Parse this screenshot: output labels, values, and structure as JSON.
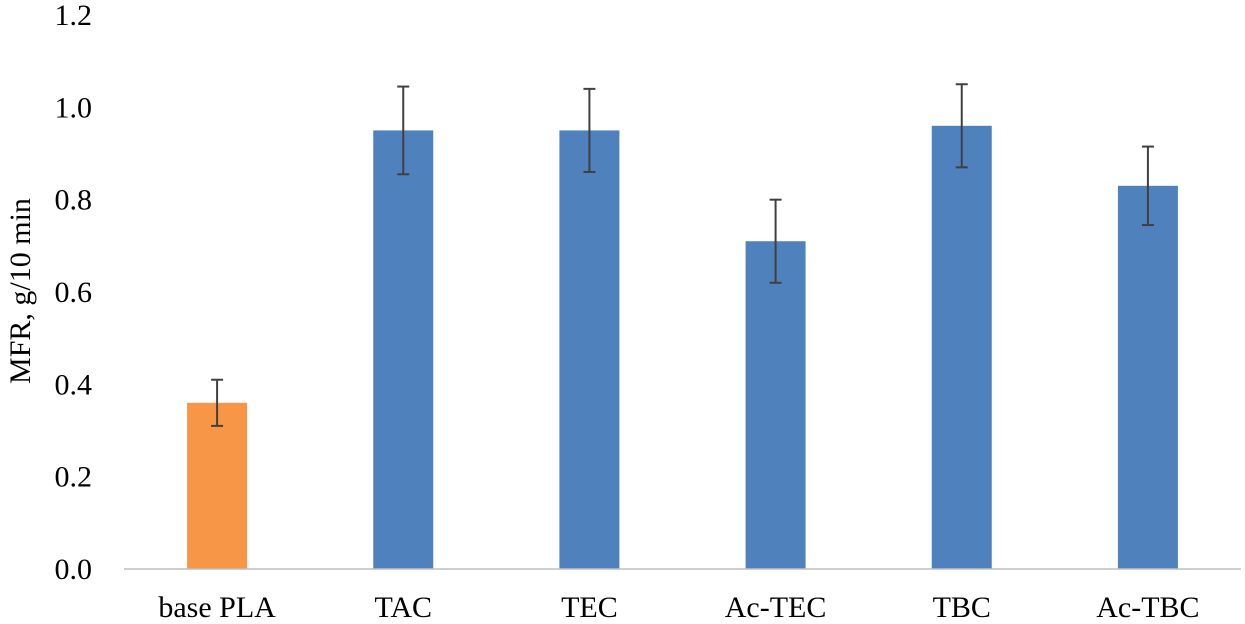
{
  "chart_data": {
    "type": "bar",
    "title": "",
    "xlabel": "",
    "ylabel": "MFR, g/10 min",
    "ylim": [
      0,
      1.2
    ],
    "yticks": [
      "0.0",
      "0.2",
      "0.4",
      "0.6",
      "0.8",
      "1.0",
      "1.2"
    ],
    "grid": false,
    "legend": "none",
    "categories": [
      "base PLA",
      "TAC",
      "TEC",
      "Ac-TEC",
      "TBC",
      "Ac-TBC"
    ],
    "values": [
      0.36,
      0.95,
      0.95,
      0.71,
      0.96,
      0.83
    ],
    "errors": [
      0.05,
      0.095,
      0.09,
      0.09,
      0.09,
      0.085
    ],
    "colors": [
      "#F79646",
      "#4F81BD",
      "#4F81BD",
      "#4F81BD",
      "#4F81BD",
      "#4F81BD"
    ],
    "error_color": "#404040",
    "axis_color": "#BFBFBF"
  }
}
